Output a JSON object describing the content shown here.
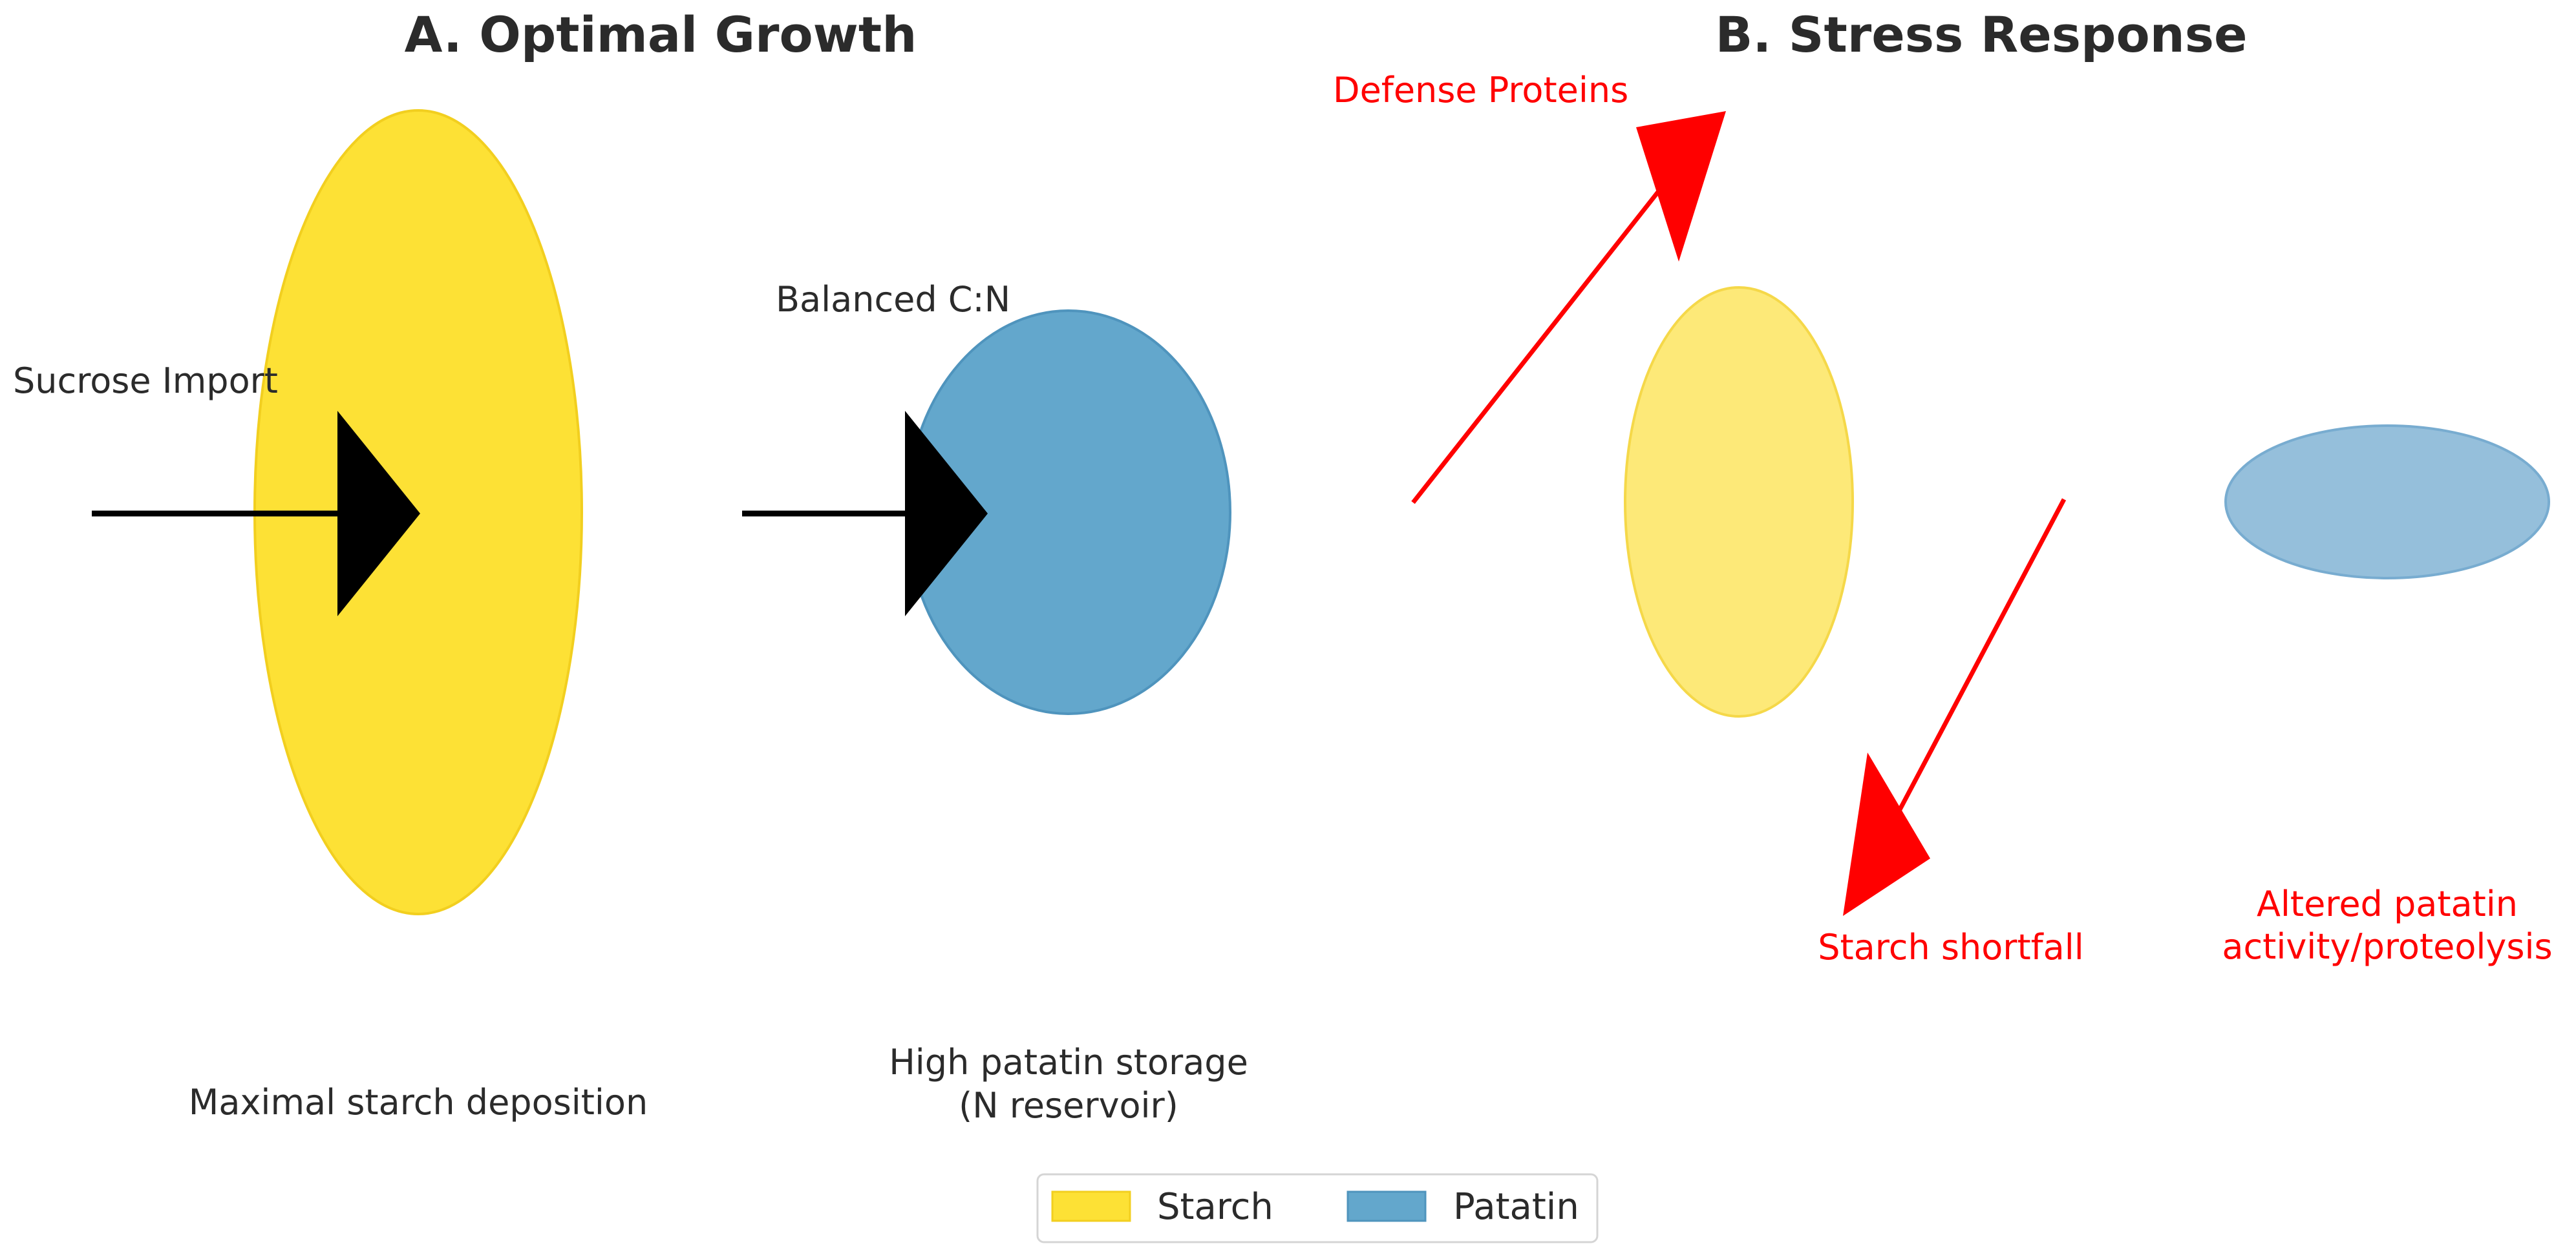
{
  "panel_a": {
    "title": "A. Optimal Growth",
    "sucrose_label": "Sucrose Import",
    "balanced_label": "Balanced C:N",
    "starch_caption": "Maximal starch deposition",
    "patatin_caption_line1": "High patatin storage",
    "patatin_caption_line2": "(N reservoir)"
  },
  "panel_b": {
    "title": "B. Stress Response",
    "defense_label": "Defense Proteins",
    "starch_shortfall_label": "Starch shortfall",
    "patatin_altered_line1": "Altered patatin",
    "patatin_altered_line2": "activity/proteolysis"
  },
  "legend": {
    "items": [
      {
        "label": "Starch",
        "color": "#fde135"
      },
      {
        "label": "Patatin",
        "color": "#63a7cc"
      }
    ]
  },
  "colors": {
    "starch": "#fde135",
    "starch_light": "#fde978",
    "patatin": "#63a7cc",
    "patatin_light": "#95bfdb",
    "stress_arrow": "#ff0000",
    "flow_arrow": "#000000"
  }
}
